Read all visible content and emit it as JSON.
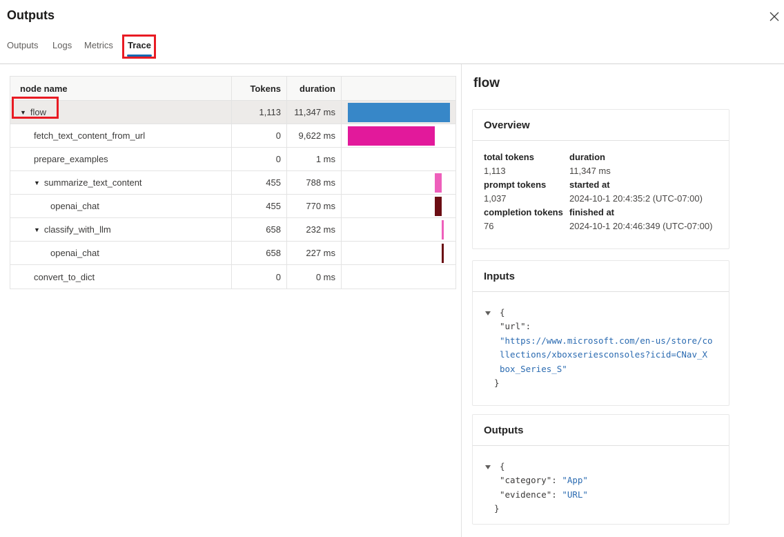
{
  "panel": {
    "title": "Outputs"
  },
  "tabs": [
    {
      "label": "Outputs",
      "active": false
    },
    {
      "label": "Logs",
      "active": false
    },
    {
      "label": "Metrics",
      "active": false
    },
    {
      "label": "Trace",
      "active": true,
      "annotated": true
    }
  ],
  "table": {
    "columns": [
      "node name",
      "Tokens",
      "duration"
    ],
    "total_ms": 11347,
    "rows": [
      {
        "name": "flow",
        "indent": 0,
        "expandable": true,
        "selected": true,
        "annotated": true,
        "tokens": "1,113",
        "duration": "11,347 ms",
        "bar": {
          "start": 0,
          "dur": 11347,
          "color": "#3787c8"
        }
      },
      {
        "name": "fetch_text_content_from_url",
        "indent": 1,
        "expandable": false,
        "tokens": "0",
        "duration": "9,622 ms",
        "bar": {
          "start": 0,
          "dur": 9622,
          "color": "#e2199b"
        }
      },
      {
        "name": "prepare_examples",
        "indent": 1,
        "expandable": false,
        "tokens": "0",
        "duration": "1 ms",
        "bar": {
          "start": 9622,
          "dur": 1,
          "color": "#e2199b"
        }
      },
      {
        "name": "summarize_text_content",
        "indent": 1,
        "expandable": true,
        "tokens": "455",
        "duration": "788 ms",
        "bar": {
          "start": 9623,
          "dur": 788,
          "color": "#ee5fbb"
        }
      },
      {
        "name": "openai_chat",
        "indent": 2,
        "expandable": false,
        "tokens": "455",
        "duration": "770 ms",
        "bar": {
          "start": 9637,
          "dur": 770,
          "color": "#6b0d13"
        }
      },
      {
        "name": "classify_with_llm",
        "indent": 1,
        "expandable": true,
        "tokens": "658",
        "duration": "232 ms",
        "bar": {
          "start": 10411,
          "dur": 232,
          "color": "#ee5fbb"
        }
      },
      {
        "name": "openai_chat",
        "indent": 2,
        "expandable": false,
        "tokens": "658",
        "duration": "227 ms",
        "bar": {
          "start": 10415,
          "dur": 227,
          "color": "#6b0d13"
        }
      },
      {
        "name": "convert_to_dict",
        "indent": 1,
        "expandable": false,
        "tokens": "0",
        "duration": "0 ms",
        "bar": {
          "start": 10643,
          "dur": 0,
          "color": "#e2199b"
        }
      }
    ]
  },
  "details": {
    "title": "flow",
    "overview": {
      "heading": "Overview",
      "left": [
        {
          "label": "total tokens",
          "value": "1,113"
        },
        {
          "label": "prompt tokens",
          "value": "1,037"
        },
        {
          "label": "completion tokens",
          "value": "76"
        }
      ],
      "right": [
        {
          "label": "duration",
          "value": "11,347 ms"
        },
        {
          "label": "started at",
          "value": "2024-10-1 20:4:35:2 (UTC-07:00)"
        },
        {
          "label": "finished at",
          "value": "2024-10-1 20:4:46:349 (UTC-07:00)"
        }
      ]
    },
    "inputs": {
      "heading": "Inputs",
      "json_lines": [
        {
          "segs": [
            {
              "t": "{",
              "c": "plain"
            }
          ]
        },
        {
          "segs": [
            {
              "t": "\"url\":",
              "c": "plain"
            }
          ]
        },
        {
          "segs": [
            {
              "t": "\"https://www.microsoft.com/en-us/store/co",
              "c": "string"
            }
          ]
        },
        {
          "segs": [
            {
              "t": "llections/xboxseriesconsoles?icid=CNav_X",
              "c": "string"
            }
          ]
        },
        {
          "segs": [
            {
              "t": "box_Series_S\"",
              "c": "string"
            }
          ]
        },
        {
          "segs": [
            {
              "t": "}",
              "c": "plain"
            }
          ],
          "outdent": true
        }
      ]
    },
    "outputs": {
      "heading": "Outputs",
      "json_lines": [
        {
          "segs": [
            {
              "t": "{",
              "c": "plain"
            }
          ]
        },
        {
          "segs": [
            {
              "t": "\"category\": ",
              "c": "plain"
            },
            {
              "t": "\"App\"",
              "c": "string"
            }
          ]
        },
        {
          "segs": [
            {
              "t": "\"evidence\": ",
              "c": "plain"
            },
            {
              "t": "\"URL\"",
              "c": "string"
            }
          ]
        },
        {
          "segs": [
            {
              "t": "}",
              "c": "plain"
            }
          ],
          "outdent": true
        }
      ]
    }
  },
  "colors": {
    "annotation_red": "#e81b23",
    "tab_underline_blue": "#1267b1",
    "selected_row": "#edebe9",
    "bar_flow_blue": "#3787c8",
    "bar_magenta": "#e2199b",
    "bar_pink": "#ee5fbb",
    "bar_maroon": "#6b0d13",
    "json_string_blue": "#2b6bb1"
  },
  "icons": {
    "close": "✕",
    "expand_caret": "▼"
  }
}
